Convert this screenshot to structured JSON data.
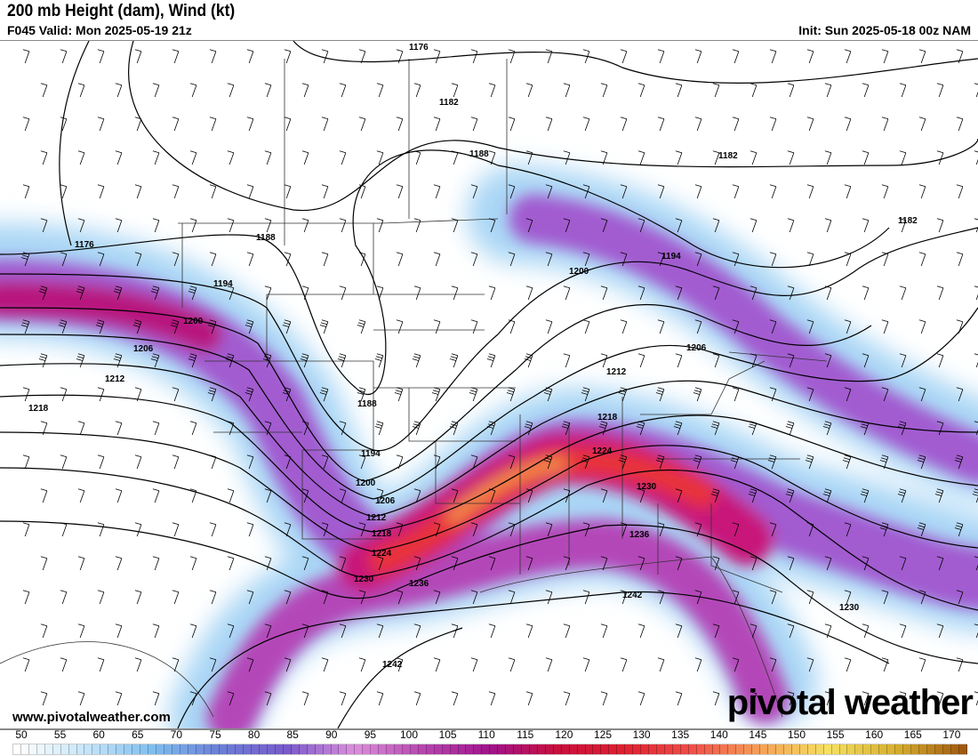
{
  "header": {
    "title": "200 mb Height (dam), Wind (kt)",
    "valid": "F045 Valid: Mon 2025-05-19 21z",
    "init": "Init: Sun 2025-05-18 00z NAM"
  },
  "map": {
    "contour_labels": [
      "1176",
      "1182",
      "1188",
      "1194",
      "1200",
      "1206",
      "1212",
      "1218",
      "1224",
      "1230",
      "1236",
      "1242"
    ],
    "jet_colors": {
      "weak": "#9fd3f5",
      "moderate": "#a25bd0",
      "strong": "#c8127a",
      "core": "#e8333a",
      "max": "#f2894a"
    }
  },
  "footer": {
    "url": "www.pivotalweather.com",
    "brand": "pivotal weather"
  },
  "colorbar": {
    "ticks": [
      "50",
      "55",
      "60",
      "65",
      "70",
      "75",
      "80",
      "85",
      "90",
      "95",
      "100",
      "105",
      "110",
      "115",
      "120",
      "125",
      "130",
      "135",
      "140",
      "145",
      "150",
      "155",
      "160",
      "165",
      "170"
    ],
    "stops": [
      "#ffffff",
      "#c8e6fa",
      "#7fbff0",
      "#6b7fd8",
      "#7a5acb",
      "#dc8fdc",
      "#b846b0",
      "#a0148c",
      "#c8103c",
      "#e02030",
      "#f0504a",
      "#f5a058",
      "#f5e060",
      "#d8b030",
      "#a05a10"
    ]
  }
}
